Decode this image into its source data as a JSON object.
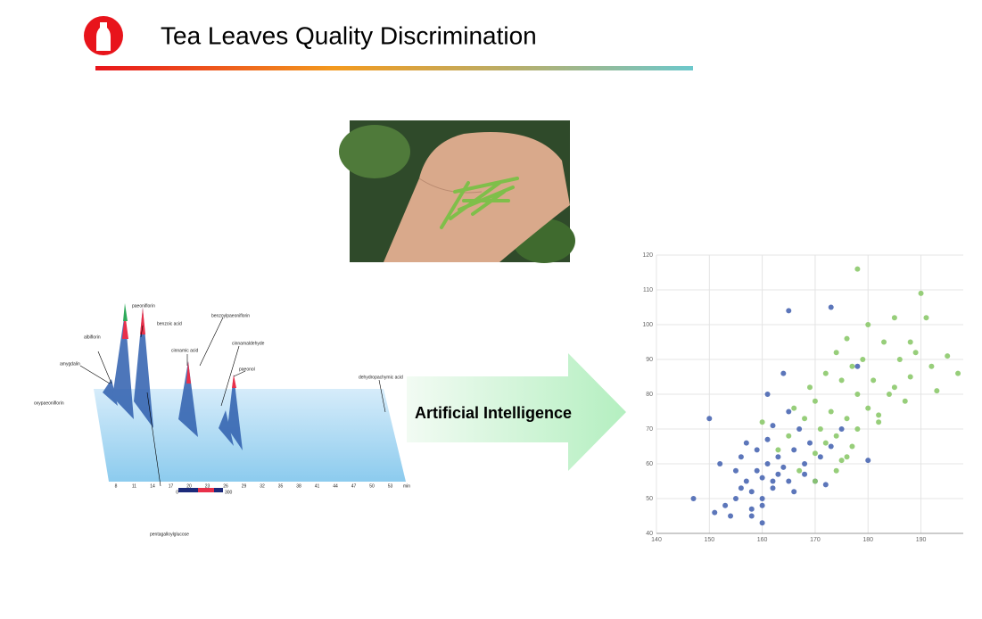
{
  "header": {
    "title": "Tea Leaves Quality Discrimination"
  },
  "arrow": {
    "label": "Artificial Intelligence"
  },
  "chromatogram": {
    "compounds": [
      "oxypaeoniflorin",
      "amygdalin",
      "albiflorin",
      "paeoniflorin",
      "benzoic acid",
      "cinnamic acid",
      "benzoylpaeoniflorin",
      "cinnamaldehyde",
      "paeonol",
      "dehydropachymic acid",
      "pentagalloylglucose"
    ],
    "time_ticks": [
      "8",
      "11",
      "14",
      "17",
      "20",
      "23",
      "26",
      "29",
      "32",
      "35",
      "38",
      "41",
      "44",
      "47",
      "50",
      "53"
    ],
    "time_unit": "min",
    "colorbar_labels": [
      "0",
      "300"
    ]
  },
  "chart_data": {
    "type": "scatter",
    "xlim": [
      140,
      198
    ],
    "ylim": [
      40,
      120
    ],
    "xticks": [
      140,
      150,
      160,
      170,
      180,
      190
    ],
    "yticks": [
      40,
      50,
      60,
      70,
      80,
      90,
      100,
      110,
      120
    ],
    "grid": true,
    "series": [
      {
        "color": "#4a67b3",
        "x": [
          147,
          150,
          151,
          152,
          153,
          154,
          155,
          155,
          156,
          157,
          157,
          158,
          158,
          159,
          159,
          160,
          160,
          160,
          161,
          161,
          162,
          162,
          163,
          163,
          164,
          164,
          165,
          165,
          166,
          166,
          167,
          168,
          168,
          169,
          170,
          171,
          172,
          173,
          175,
          178,
          180,
          160,
          162,
          165,
          173,
          156,
          158,
          161
        ],
        "values": [
          50,
          73,
          46,
          60,
          48,
          45,
          50,
          58,
          62,
          55,
          66,
          47,
          52,
          58,
          64,
          43,
          50,
          56,
          60,
          80,
          53,
          71,
          57,
          62,
          59,
          86,
          104,
          55,
          52,
          64,
          70,
          57,
          60,
          66,
          55,
          62,
          54,
          105,
          70,
          88,
          61,
          48,
          55,
          75,
          65,
          53,
          45,
          67
        ]
      },
      {
        "color": "#8cc96b",
        "x": [
          160,
          163,
          165,
          166,
          167,
          168,
          169,
          170,
          170,
          171,
          172,
          172,
          173,
          174,
          174,
          175,
          175,
          176,
          176,
          177,
          177,
          178,
          178,
          178,
          179,
          180,
          180,
          181,
          182,
          183,
          184,
          185,
          186,
          187,
          188,
          189,
          190,
          191,
          192,
          193,
          195,
          197,
          170,
          174,
          176,
          182,
          185,
          188
        ],
        "values": [
          72,
          64,
          68,
          76,
          58,
          73,
          82,
          63,
          78,
          70,
          86,
          66,
          75,
          92,
          68,
          84,
          61,
          96,
          73,
          88,
          65,
          116,
          80,
          70,
          90,
          100,
          76,
          84,
          72,
          95,
          80,
          102,
          90,
          78,
          85,
          92,
          109,
          102,
          88,
          81,
          91,
          86,
          55,
          58,
          62,
          74,
          82,
          95
        ]
      }
    ]
  }
}
